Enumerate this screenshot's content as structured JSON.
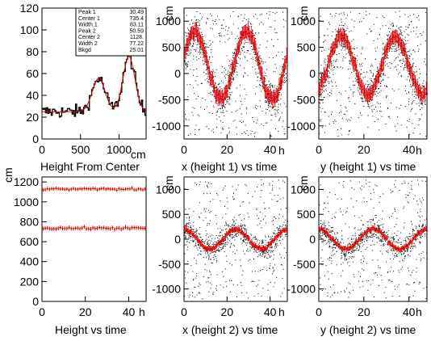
{
  "colors": {
    "frame": "#000000",
    "fit": "#e00000",
    "points": "#000000",
    "graph": "#000000"
  },
  "chart_data": [
    {
      "id": "height-from-center",
      "type": "histogram",
      "title": "Height From Center",
      "xunit": "cm",
      "xlabel": "",
      "ylabel": "",
      "xlim": [
        0,
        1350
      ],
      "ylim": [
        0,
        120
      ],
      "xticks": [
        0,
        500,
        1000
      ],
      "yticks": [
        0,
        20,
        40,
        60,
        80,
        100,
        120
      ],
      "stats_box": [
        {
          "label": "Peak 1",
          "value": "30.49"
        },
        {
          "label": "Center 1",
          "value": "735.4"
        },
        {
          "label": "Width 1",
          "value": "83.11"
        },
        {
          "label": "Peak 2",
          "value": "50.59"
        },
        {
          "label": "Center 2",
          "value": "1128."
        },
        {
          "label": "Width 2",
          "value": "77.22"
        },
        {
          "label": "Bkgd",
          "value": "25.01"
        }
      ],
      "fit": {
        "peak1": 30.49,
        "center1": 735.4,
        "width1": 83.11,
        "peak2": 50.59,
        "center2": 1128,
        "width2": 77.22,
        "bkgd": 25.01
      }
    },
    {
      "id": "x-height1-vs-time",
      "type": "scatter",
      "title": "x (height 1) vs time",
      "xunit": "h",
      "yunit": "cm",
      "xlim": [
        0,
        48
      ],
      "ylim": [
        -1250,
        1250
      ],
      "xticks": [
        0,
        20,
        40
      ],
      "yticks": [
        -1000,
        -500,
        0,
        500,
        1000
      ],
      "profile": {
        "amplitude": 650,
        "period": 24,
        "phase_peak_hour": 5,
        "offset": 150,
        "error": 130
      }
    },
    {
      "id": "y-height1-vs-time",
      "type": "scatter",
      "title": "y (height 1) vs time",
      "xunit": "h",
      "yunit": "cm",
      "xlim": [
        0,
        48
      ],
      "ylim": [
        -1250,
        1250
      ],
      "xticks": [
        0,
        20,
        40
      ],
      "yticks": [
        -1000,
        -500,
        0,
        500,
        1000
      ],
      "profile": {
        "amplitude": 550,
        "period": 24,
        "phase_peak_hour": 10,
        "offset": 150,
        "error": 130
      }
    },
    {
      "id": "height-vs-time",
      "type": "scatter",
      "title": "Height vs time",
      "xunit": "h",
      "yunit": "cm",
      "xlim": [
        0,
        48
      ],
      "ylim": [
        0,
        1250
      ],
      "xticks": [
        0,
        20,
        40
      ],
      "yticks": [
        0,
        200,
        400,
        600,
        800,
        1000,
        1200
      ],
      "series": [
        {
          "level": 1128,
          "error": 18
        },
        {
          "level": 735,
          "error": 20
        }
      ]
    },
    {
      "id": "x-height2-vs-time",
      "type": "scatter",
      "title": "x (height 2) vs time",
      "xunit": "h",
      "yunit": "cm",
      "xlim": [
        0,
        48
      ],
      "ylim": [
        -1250,
        1250
      ],
      "xticks": [
        0,
        20,
        40
      ],
      "yticks": [
        -1000,
        -500,
        0,
        500,
        1000
      ],
      "profile": {
        "amplitude": 200,
        "period": 24,
        "phase_peak_hour": 24,
        "offset": 0,
        "error": 50
      }
    },
    {
      "id": "y-height2-vs-time",
      "type": "scatter",
      "title": "y (height 2) vs time",
      "xunit": "h",
      "yunit": "cm",
      "xlim": [
        0,
        48
      ],
      "ylim": [
        -1250,
        1250
      ],
      "xticks": [
        0,
        20,
        40
      ],
      "yticks": [
        -1000,
        -500,
        0,
        500,
        1000
      ],
      "profile": {
        "amplitude": 200,
        "period": 24,
        "phase_peak_hour": 24,
        "offset": 0,
        "error": 50
      }
    }
  ]
}
